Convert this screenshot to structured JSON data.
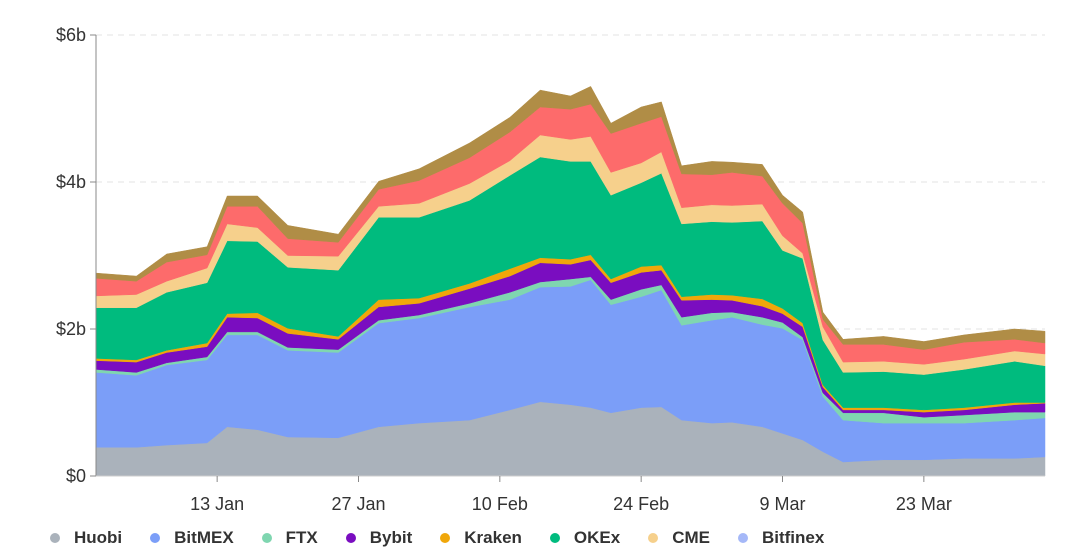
{
  "chart_data": {
    "type": "area",
    "stacked": true,
    "title": "",
    "xlabel": "",
    "ylabel": "",
    "ylim": [
      0,
      6
    ],
    "y_unit": "$b",
    "y_ticks": [
      {
        "value": 0,
        "label": "$0"
      },
      {
        "value": 2,
        "label": "$2b"
      },
      {
        "value": 4,
        "label": "$4b"
      },
      {
        "value": 6,
        "label": "$6b"
      }
    ],
    "x_range": [
      "Jan 1",
      "Apr 4"
    ],
    "x_ticks": [
      "13 Jan",
      "27 Jan",
      "10 Feb",
      "24 Feb",
      "9 Mar",
      "23 Mar"
    ],
    "grid": "horizontal dashed",
    "legend_position": "bottom",
    "x": [
      "Jan 1",
      "Jan 5",
      "Jan 8",
      "Jan 12",
      "Jan 14",
      "Jan 17",
      "Jan 20",
      "Jan 25",
      "Jan 29",
      "Feb 2",
      "Feb 7",
      "Feb 11",
      "Feb 14",
      "Feb 17",
      "Feb 19",
      "Feb 21",
      "Feb 24",
      "Feb 26",
      "Feb 28",
      "Mar 2",
      "Mar 4",
      "Mar 7",
      "Mar 9",
      "Mar 11",
      "Mar 13",
      "Mar 15",
      "Mar 19",
      "Mar 23",
      "Mar 27",
      "Apr 1",
      "Apr 4"
    ],
    "series": [
      {
        "name": "Huobi",
        "color": "#aab2bb",
        "values": [
          0.39,
          0.39,
          0.42,
          0.45,
          0.67,
          0.63,
          0.53,
          0.52,
          0.67,
          0.72,
          0.76,
          0.9,
          1.01,
          0.97,
          0.93,
          0.86,
          0.93,
          0.94,
          0.76,
          0.72,
          0.73,
          0.67,
          0.58,
          0.49,
          0.33,
          0.19,
          0.22,
          0.22,
          0.24,
          0.24,
          0.26
        ]
      },
      {
        "name": "BitMEX",
        "color": "#7b9ef8",
        "values": [
          1.02,
          0.98,
          1.09,
          1.13,
          1.25,
          1.29,
          1.18,
          1.16,
          1.41,
          1.43,
          1.54,
          1.5,
          1.56,
          1.61,
          1.74,
          1.47,
          1.51,
          1.59,
          1.29,
          1.4,
          1.43,
          1.39,
          1.43,
          1.36,
          0.75,
          0.57,
          0.5,
          0.5,
          0.48,
          0.52,
          0.53
        ]
      },
      {
        "name": "FTX",
        "color": "#7fd6b0",
        "values": [
          0.04,
          0.04,
          0.03,
          0.04,
          0.04,
          0.04,
          0.04,
          0.04,
          0.04,
          0.04,
          0.05,
          0.1,
          0.07,
          0.1,
          0.04,
          0.07,
          0.1,
          0.07,
          0.11,
          0.1,
          0.07,
          0.1,
          0.08,
          0.04,
          0.05,
          0.1,
          0.14,
          0.08,
          0.11,
          0.11,
          0.08
        ]
      },
      {
        "name": "Bybit",
        "color": "#7a0dc0",
        "values": [
          0.12,
          0.14,
          0.14,
          0.14,
          0.2,
          0.19,
          0.19,
          0.14,
          0.18,
          0.16,
          0.2,
          0.22,
          0.26,
          0.2,
          0.23,
          0.23,
          0.23,
          0.2,
          0.23,
          0.18,
          0.16,
          0.15,
          0.12,
          0.14,
          0.08,
          0.04,
          0.04,
          0.07,
          0.07,
          0.1,
          0.12
        ]
      },
      {
        "name": "Kraken",
        "color": "#f0a70a",
        "values": [
          0.03,
          0.03,
          0.03,
          0.05,
          0.05,
          0.07,
          0.07,
          0.04,
          0.1,
          0.07,
          0.07,
          0.1,
          0.07,
          0.07,
          0.07,
          0.05,
          0.08,
          0.07,
          0.05,
          0.07,
          0.07,
          0.1,
          0.07,
          0.05,
          0.03,
          0.03,
          0.03,
          0.03,
          0.03,
          0.03,
          0.01
        ]
      },
      {
        "name": "OKEx",
        "color": "#00bb7e",
        "values": [
          0.69,
          0.71,
          0.79,
          0.82,
          0.99,
          0.97,
          0.83,
          0.9,
          1.12,
          1.1,
          1.13,
          1.27,
          1.37,
          1.33,
          1.27,
          1.14,
          1.14,
          1.25,
          0.99,
          0.99,
          0.99,
          1.06,
          0.79,
          0.88,
          0.61,
          0.48,
          0.49,
          0.48,
          0.52,
          0.56,
          0.5
        ]
      },
      {
        "name": "CME",
        "color": "#f6d08c",
        "values": [
          0.16,
          0.18,
          0.15,
          0.2,
          0.23,
          0.19,
          0.16,
          0.19,
          0.15,
          0.19,
          0.23,
          0.2,
          0.3,
          0.3,
          0.34,
          0.31,
          0.27,
          0.29,
          0.22,
          0.23,
          0.23,
          0.23,
          0.2,
          0.07,
          0.18,
          0.14,
          0.14,
          0.14,
          0.14,
          0.14,
          0.16
        ]
      },
      {
        "color": "#fd6b6b",
        "values": [
          0.24,
          0.18,
          0.26,
          0.18,
          0.24,
          0.29,
          0.23,
          0.19,
          0.23,
          0.31,
          0.35,
          0.39,
          0.38,
          0.41,
          0.44,
          0.53,
          0.54,
          0.48,
          0.46,
          0.41,
          0.45,
          0.38,
          0.44,
          0.41,
          0.1,
          0.24,
          0.23,
          0.2,
          0.23,
          0.16,
          0.15
        ]
      },
      {
        "color": "#b08d46",
        "values": [
          0.07,
          0.07,
          0.11,
          0.11,
          0.14,
          0.14,
          0.18,
          0.11,
          0.11,
          0.16,
          0.2,
          0.2,
          0.23,
          0.18,
          0.24,
          0.14,
          0.22,
          0.2,
          0.11,
          0.18,
          0.14,
          0.16,
          0.11,
          0.15,
          0.1,
          0.07,
          0.11,
          0.11,
          0.1,
          0.14,
          0.16
        ]
      }
    ],
    "legend": [
      {
        "name": "Huobi",
        "color": "#aab2bb"
      },
      {
        "name": "BitMEX",
        "color": "#7b9ef8"
      },
      {
        "name": "FTX",
        "color": "#7fd6b0"
      },
      {
        "name": "Bybit",
        "color": "#7a0dc0"
      },
      {
        "name": "Kraken",
        "color": "#f0a70a"
      },
      {
        "name": "OKEx",
        "color": "#00bb7e"
      },
      {
        "name": "CME",
        "color": "#f6d08c"
      },
      {
        "name": "Bitfinex",
        "color": "#a5b8f8"
      }
    ]
  }
}
